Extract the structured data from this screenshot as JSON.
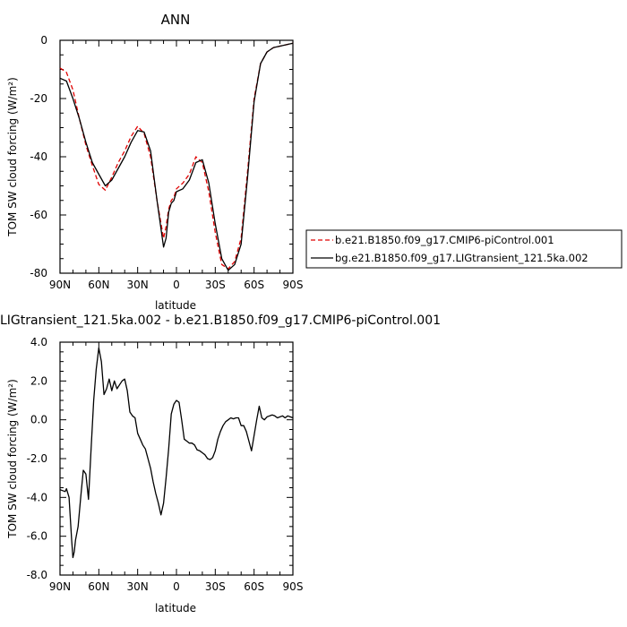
{
  "chart_data": [
    {
      "type": "line",
      "title": "ANN",
      "xlabel": "latitude",
      "ylabel": "TOM SW cloud forcing (W/m²)",
      "xlim": [
        90,
        -90
      ],
      "ylim": [
        -80,
        0
      ],
      "x_ticks": [
        90,
        60,
        30,
        0,
        -30,
        -60,
        -90
      ],
      "x_tick_labels": [
        "90N",
        "60N",
        "30N",
        "0",
        "30S",
        "60S",
        "90S"
      ],
      "y_ticks": [
        0,
        -20,
        -40,
        -60,
        -80
      ],
      "y_tick_labels": [
        "0",
        "-20",
        "-40",
        "-60",
        "-80"
      ],
      "legend_position": "right",
      "series": [
        {
          "name": "b.e21.B1850.f09_g17.CMIP6-piControl.001",
          "color": "#e00000",
          "dash": "dashed",
          "x": [
            90,
            85,
            80,
            75,
            70,
            65,
            60,
            55,
            50,
            45,
            40,
            35,
            30,
            25,
            20,
            15,
            10,
            8,
            6,
            4,
            2,
            0,
            -5,
            -10,
            -15,
            -20,
            -25,
            -30,
            -35,
            -40,
            -45,
            -50,
            -55,
            -60,
            -65,
            -70,
            -75,
            -80,
            -85,
            -90
          ],
          "y": [
            -9.5,
            -11,
            -17,
            -27,
            -36,
            -43,
            -49.5,
            -51.5,
            -47,
            -42,
            -38,
            -33,
            -29.5,
            -32,
            -40,
            -55,
            -68,
            -64,
            -58,
            -55,
            -54,
            -51,
            -49,
            -46,
            -40,
            -42,
            -52,
            -66,
            -77,
            -78.5,
            -76,
            -68,
            -45,
            -20,
            -8,
            -4,
            -2.5,
            -2,
            -1.5,
            -1
          ]
        },
        {
          "name": "bg.e21.B1850.f09_g17.LIGtransient_121.5ka.002",
          "color": "#000000",
          "dash": "solid",
          "x": [
            90,
            85,
            80,
            75,
            70,
            65,
            60,
            55,
            50,
            45,
            40,
            35,
            30,
            25,
            20,
            15,
            10,
            8,
            6,
            4,
            2,
            0,
            -5,
            -10,
            -15,
            -20,
            -25,
            -30,
            -35,
            -40,
            -45,
            -50,
            -55,
            -60,
            -65,
            -70,
            -75,
            -80,
            -85,
            -90
          ],
          "y": [
            -13,
            -14,
            -20,
            -27,
            -35,
            -42,
            -46,
            -50,
            -48,
            -44,
            -40,
            -35,
            -31,
            -31.5,
            -38,
            -55,
            -71,
            -68,
            -59,
            -56,
            -55,
            -52,
            -51,
            -48,
            -42,
            -41,
            -49,
            -63,
            -75,
            -79,
            -77,
            -70,
            -47,
            -21,
            -8,
            -4,
            -2.5,
            -2,
            -1.5,
            -1
          ]
        }
      ]
    },
    {
      "type": "line",
      "title": "LIGtransient_121.5ka.002 - b.e21.B1850.f09_g17.CMIP6-piControl.001",
      "xlabel": "latitude",
      "ylabel": "TOM SW cloud forcing (W/m²)",
      "xlim": [
        90,
        -90
      ],
      "ylim": [
        -8,
        4
      ],
      "x_ticks": [
        90,
        60,
        30,
        0,
        -30,
        -60,
        -90
      ],
      "x_tick_labels": [
        "90N",
        "60N",
        "30N",
        "0",
        "30S",
        "60S",
        "90S"
      ],
      "y_ticks": [
        4,
        2,
        0,
        -2,
        -4,
        -6,
        -8
      ],
      "y_tick_labels": [
        "4.0",
        "2.0",
        "0.0",
        "-2.0",
        "-4.0",
        "-6.0",
        "-8.0"
      ],
      "series": [
        {
          "color": "#000000",
          "dash": "solid",
          "x": [
            90,
            86,
            85,
            83,
            81,
            80,
            79,
            78,
            76,
            74,
            72,
            70,
            68,
            66,
            64,
            62,
            60,
            58,
            56,
            54,
            52,
            50,
            48,
            46,
            44,
            42,
            40,
            38,
            36,
            34,
            32,
            30,
            28,
            26,
            24,
            22,
            20,
            18,
            16,
            14,
            12,
            10,
            8,
            6,
            4,
            2,
            0,
            -2,
            -4,
            -6,
            -8,
            -10,
            -12,
            -14,
            -16,
            -18,
            -20,
            -22,
            -24,
            -26,
            -28,
            -30,
            -32,
            -34,
            -36,
            -38,
            -40,
            -42,
            -44,
            -46,
            -48,
            -50,
            -52,
            -54,
            -56,
            -58,
            -60,
            -62,
            -64,
            -66,
            -68,
            -70,
            -72,
            -74,
            -76,
            -78,
            -80,
            -82,
            -84,
            -86,
            -88,
            -90
          ],
          "y": [
            -3.6,
            -3.7,
            -3.55,
            -4.0,
            -6.2,
            -7.1,
            -6.8,
            -6.2,
            -5.5,
            -4.0,
            -2.6,
            -2.8,
            -4.1,
            -1.5,
            1.0,
            2.6,
            3.7,
            3.0,
            1.3,
            1.6,
            2.1,
            1.5,
            2.0,
            1.6,
            1.8,
            2.0,
            2.1,
            1.5,
            0.4,
            0.2,
            0.1,
            -0.7,
            -1.0,
            -1.3,
            -1.5,
            -2.0,
            -2.5,
            -3.2,
            -3.8,
            -4.3,
            -4.9,
            -4.3,
            -3.0,
            -1.5,
            0.3,
            0.8,
            1.0,
            0.9,
            0.0,
            -1.0,
            -1.1,
            -1.2,
            -1.2,
            -1.3,
            -1.55,
            -1.6,
            -1.7,
            -1.8,
            -2.0,
            -2.05,
            -1.95,
            -1.6,
            -1.0,
            -0.6,
            -0.3,
            -0.1,
            0.0,
            0.1,
            0.05,
            0.1,
            0.1,
            -0.3,
            -0.3,
            -0.6,
            -1.1,
            -1.6,
            -0.8,
            0.0,
            0.7,
            0.1,
            0.0,
            0.15,
            0.2,
            0.25,
            0.2,
            0.1,
            0.15,
            0.2,
            0.1,
            0.2,
            0.15,
            0.1
          ]
        }
      ]
    }
  ]
}
